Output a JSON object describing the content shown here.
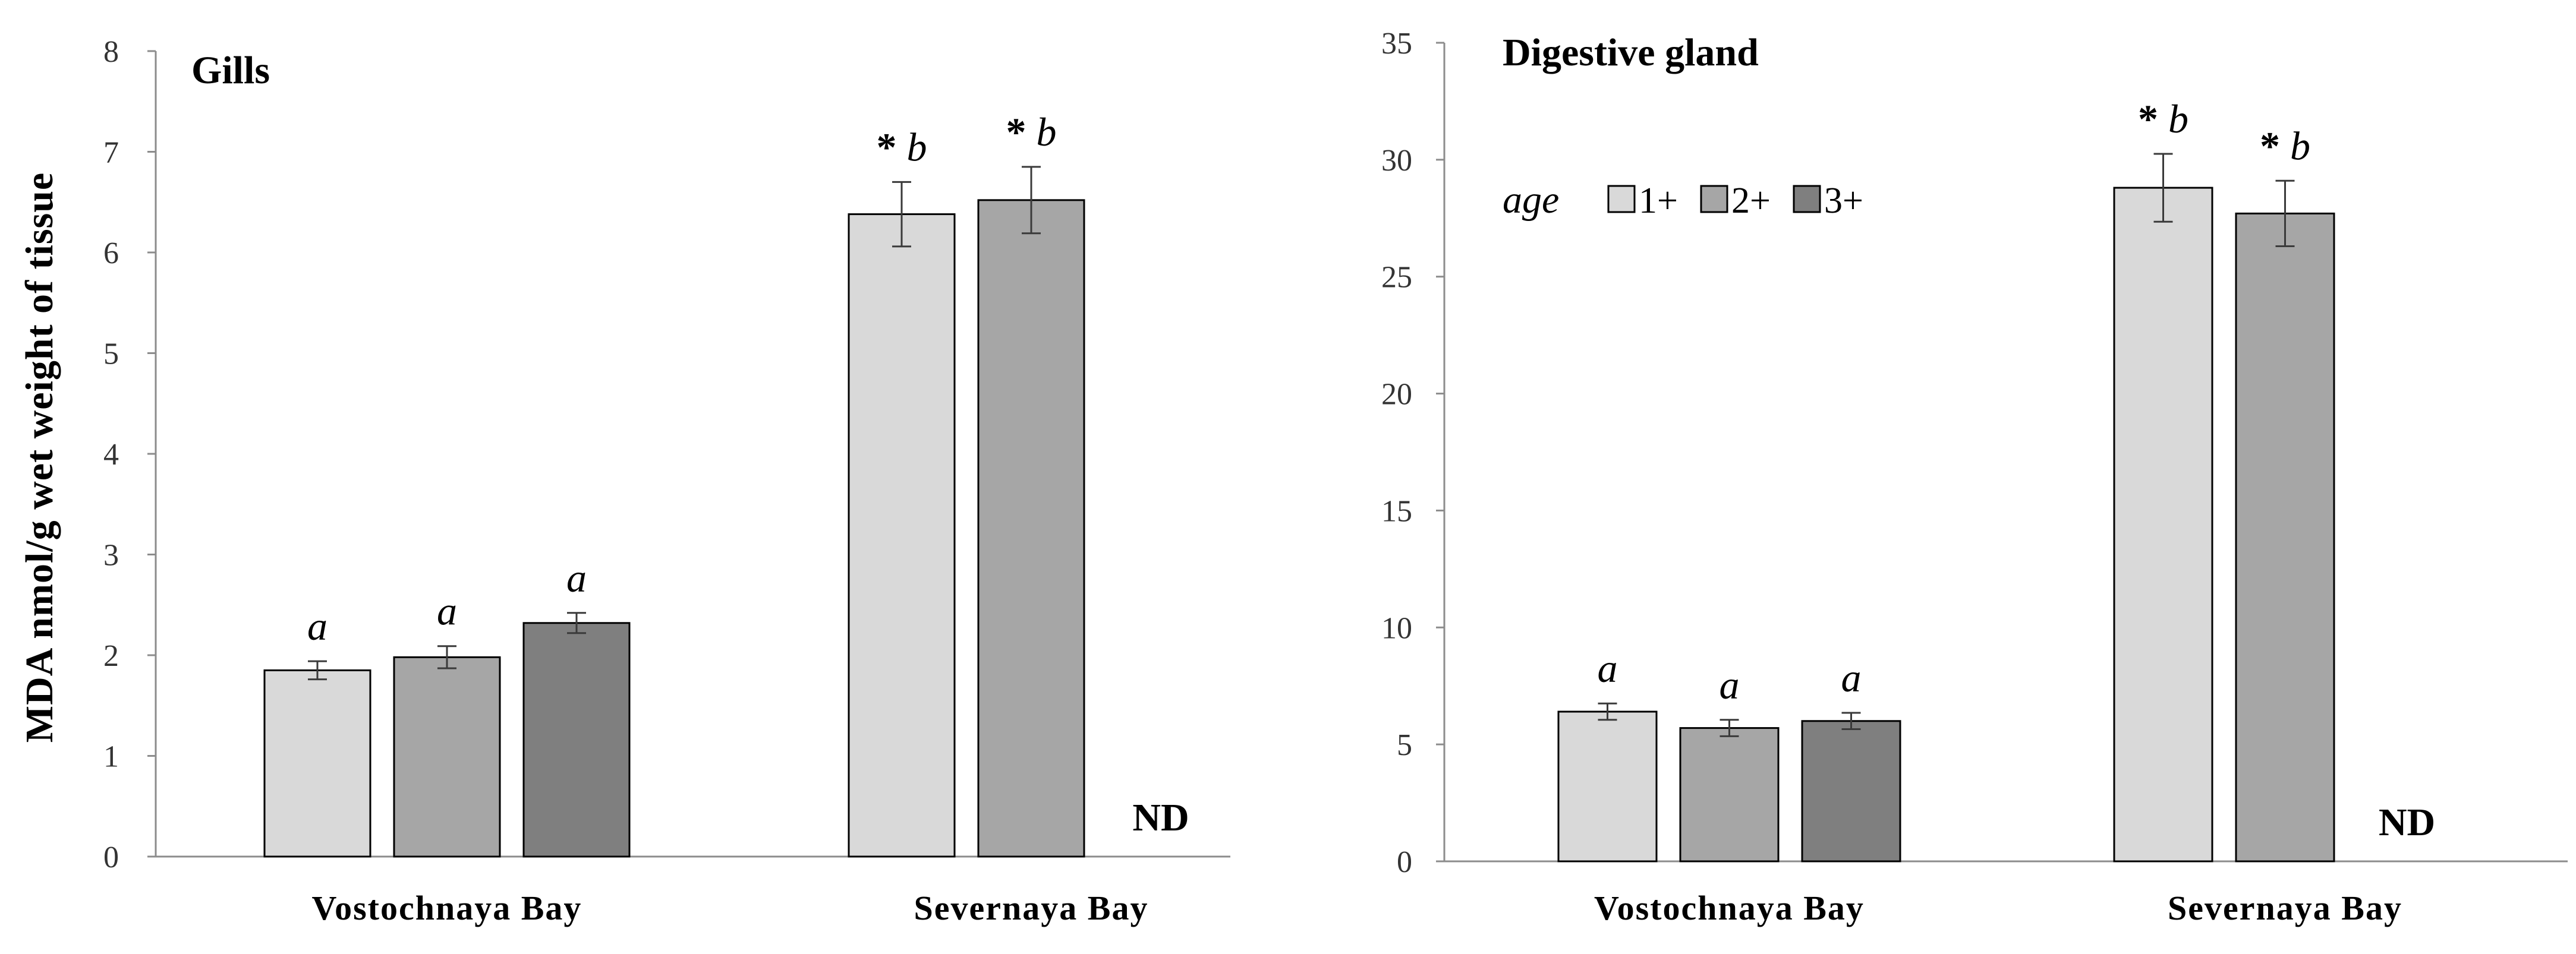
{
  "chart_data": [
    {
      "type": "bar",
      "title": "Gills",
      "ylabel": "MDA nmol/g wet weight of tissue",
      "xlabel": "",
      "ylim": [
        0,
        8
      ],
      "yticks": [
        0,
        1,
        2,
        3,
        4,
        5,
        6,
        7,
        8
      ],
      "categories": [
        "Vostochnaya  Bay",
        "Severnaya  Bay"
      ],
      "series": [
        {
          "name": "1+",
          "color": "#d9d9d9",
          "values": [
            1.85,
            6.38
          ],
          "errors": [
            0.09,
            0.32
          ],
          "labels": [
            "a",
            "* b"
          ]
        },
        {
          "name": "2+",
          "color": "#a6a6a6",
          "values": [
            1.98,
            6.52
          ],
          "errors": [
            0.11,
            0.33
          ],
          "labels": [
            "a",
            "* b"
          ]
        },
        {
          "name": "3+",
          "color": "#7f7f7f",
          "values": [
            2.32,
            null
          ],
          "errors": [
            0.1,
            null
          ],
          "labels": [
            "a",
            ""
          ]
        }
      ],
      "annotations": [
        {
          "text": "ND",
          "category": 1,
          "series": 2
        }
      ]
    },
    {
      "type": "bar",
      "title": "Digestive gland",
      "ylabel": "",
      "xlabel": "",
      "ylim": [
        0,
        35
      ],
      "yticks": [
        0,
        5,
        10,
        15,
        20,
        25,
        30,
        35
      ],
      "categories": [
        "Vostochnaya  Bay",
        "Severnaya  Bay"
      ],
      "legend": {
        "title": "age",
        "position": "top-left",
        "entries": [
          "1+",
          "2+",
          "3+"
        ]
      },
      "series": [
        {
          "name": "1+",
          "color": "#d9d9d9",
          "values": [
            6.4,
            28.8
          ],
          "errors": [
            0.35,
            1.45
          ],
          "labels": [
            "a",
            "* b"
          ]
        },
        {
          "name": "2+",
          "color": "#a6a6a6",
          "values": [
            5.7,
            27.7
          ],
          "errors": [
            0.35,
            1.4
          ],
          "labels": [
            "a",
            "* b"
          ]
        },
        {
          "name": "3+",
          "color": "#7f7f7f",
          "values": [
            6.0,
            null
          ],
          "errors": [
            0.35,
            null
          ],
          "labels": [
            "a",
            ""
          ]
        }
      ],
      "annotations": [
        {
          "text": "ND",
          "category": 1,
          "series": 2
        }
      ]
    }
  ]
}
